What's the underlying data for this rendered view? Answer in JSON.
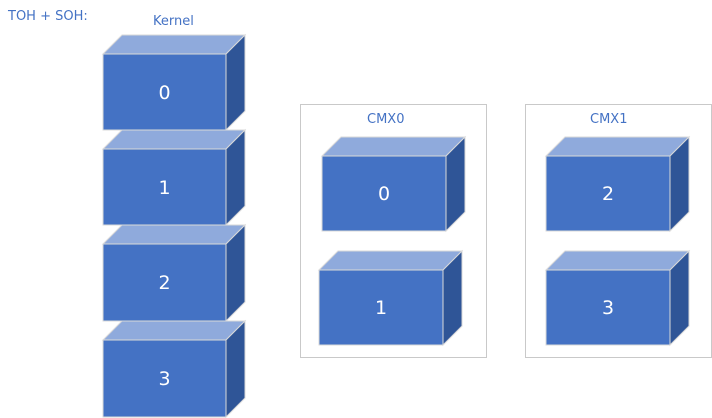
{
  "header": {
    "title": "TOH + SOH:"
  },
  "kernel": {
    "title": "Kernel",
    "blocks": [
      "0",
      "1",
      "2",
      "3"
    ]
  },
  "cmx0": {
    "title": "CMX0",
    "blocks": [
      "0",
      "1"
    ]
  },
  "cmx1": {
    "title": "CMX1",
    "blocks": [
      "2",
      "3"
    ]
  },
  "colors": {
    "front": "#4472c4",
    "top": "#8faadc",
    "side": "#2f5597",
    "edge": "#d9d9d9",
    "panel_border": "#c9c9c9",
    "text_accent": "#4472c4"
  }
}
